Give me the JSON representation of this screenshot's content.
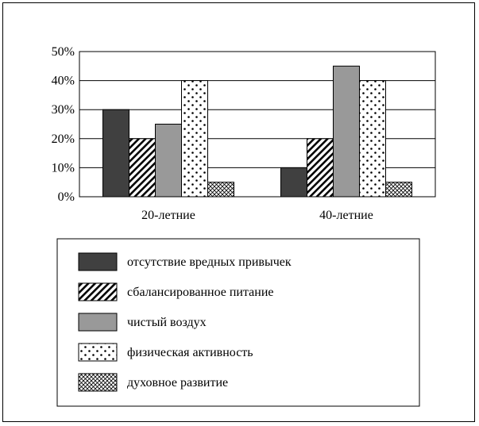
{
  "chart_data": {
    "type": "bar",
    "categories": [
      "20-летние",
      "40-летние"
    ],
    "series": [
      {
        "name": "отсутствие вредных привычек",
        "values": [
          30,
          10
        ],
        "fill": "solid",
        "color": "#404040"
      },
      {
        "name": "сбалансированное питание",
        "values": [
          20,
          20
        ],
        "fill": "diagonal-lines",
        "color": "#000000"
      },
      {
        "name": "чистый воздух",
        "values": [
          25,
          45
        ],
        "fill": "solid",
        "color": "#999999"
      },
      {
        "name": "физическая активность",
        "values": [
          40,
          40
        ],
        "fill": "dots",
        "color": "#000000"
      },
      {
        "name": "духовное развитие",
        "values": [
          5,
          5
        ],
        "fill": "crosshatch",
        "color": "#000000"
      }
    ],
    "yticks": [
      "0%",
      "10%",
      "20%",
      "30%",
      "40%",
      "50%"
    ],
    "ylim": [
      0,
      50
    ],
    "unit": "%",
    "grid": true,
    "legend": "bottom"
  }
}
